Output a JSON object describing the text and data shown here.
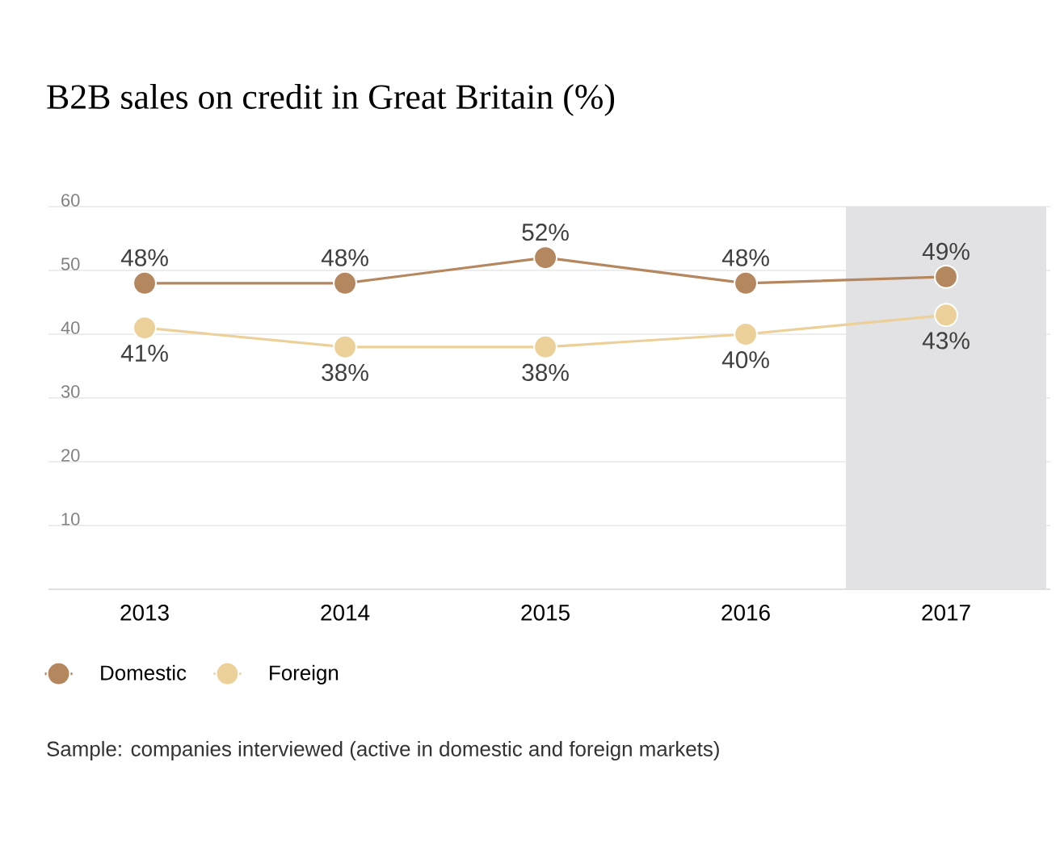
{
  "chart_data": {
    "type": "line",
    "title": "B2B sales on credit in Great Britain (%)",
    "categories": [
      "2013",
      "2014",
      "2015",
      "2016",
      "2017"
    ],
    "series": [
      {
        "name": "Domestic",
        "color": "#b5875e",
        "values": [
          48,
          48,
          52,
          48,
          49
        ],
        "value_labels": [
          "48%",
          "48%",
          "52%",
          "48%",
          "49%"
        ]
      },
      {
        "name": "Foreign",
        "color": "#ecd09a",
        "values": [
          41,
          38,
          38,
          40,
          43
        ],
        "value_labels": [
          "41%",
          "38%",
          "38%",
          "40%",
          "43%"
        ]
      }
    ],
    "ylim": [
      0,
      60
    ],
    "yticks": [
      10,
      20,
      30,
      40,
      50,
      60
    ],
    "grid": "y",
    "marker": "circle",
    "legend": "bottom left",
    "bands": [
      {
        "axis": "x",
        "from": "2017",
        "to": "2017",
        "color": "#e2e2e4"
      }
    ],
    "annotations": [
      "Sample: companies interviewed (active in domestic and foreign markets)"
    ]
  }
}
